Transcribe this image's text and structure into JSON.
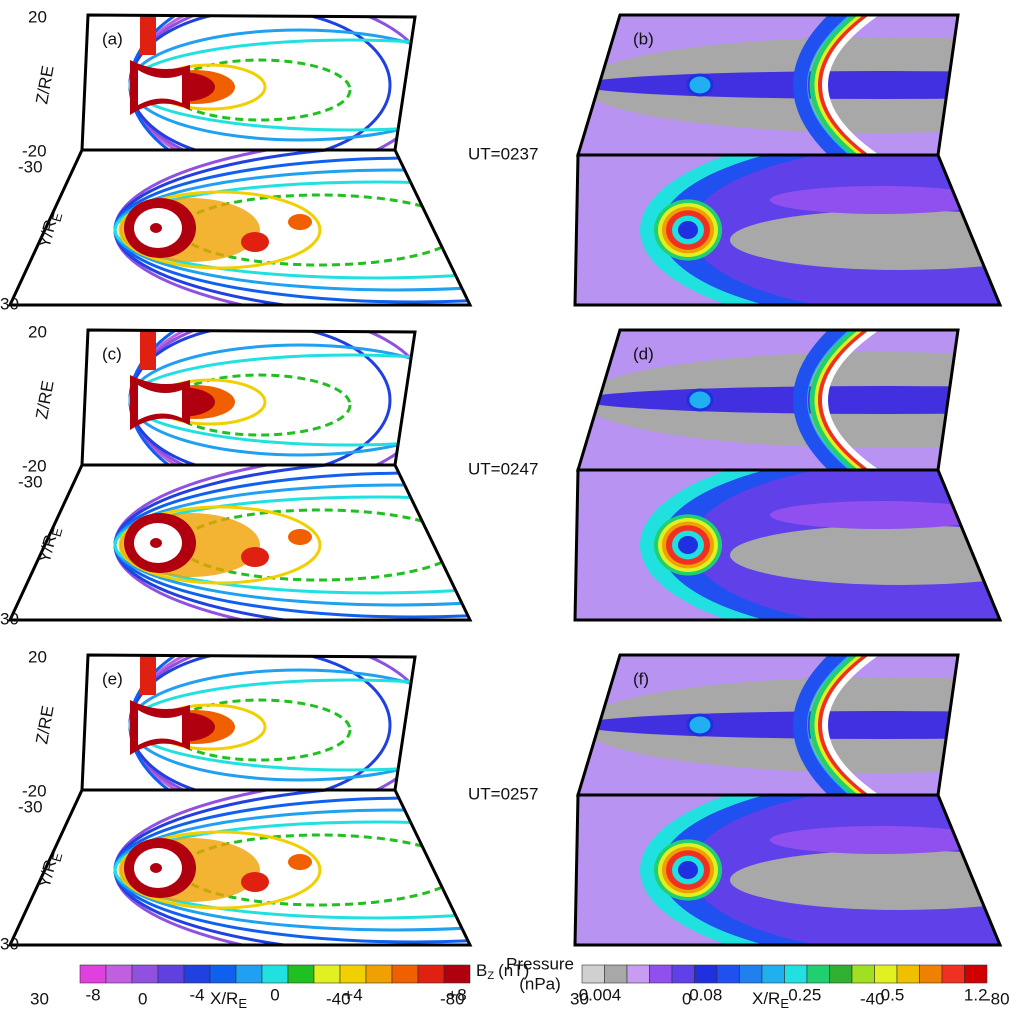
{
  "rows": [
    {
      "time": "UT=0237",
      "left_label": "(a)",
      "right_label": "(b)"
    },
    {
      "time": "UT=0247",
      "left_label": "(c)",
      "right_label": "(d)"
    },
    {
      "time": "UT=0257",
      "left_label": "(e)",
      "right_label": "(f)"
    }
  ],
  "left_axes": {
    "z_top": "20",
    "z_bottom": "-20",
    "z_title": "Z/RE",
    "y_top": "-30",
    "y_bottom": "30",
    "y_title": "Y/R",
    "y_title_sub": "E"
  },
  "x_axis": {
    "ticks": [
      "30",
      "0",
      "-40",
      "-80"
    ],
    "title": "X/R",
    "title_sub": "E"
  },
  "bz_colorbar": {
    "title": "B",
    "title_sub": "Z",
    "title_unit": "(nT)",
    "ticks": [
      "-8",
      "-4",
      "0",
      "+4",
      "+8"
    ],
    "colors": [
      "#e040e0",
      "#c060e0",
      "#9050e0",
      "#6040e0",
      "#2040e0",
      "#1060f0",
      "#20a0f0",
      "#20e0e0",
      "#20c020",
      "#e0f020",
      "#f0d000",
      "#f0a000",
      "#f06000",
      "#e02010",
      "#b00010"
    ]
  },
  "pressure_colorbar": {
    "title": "Pressure",
    "unit": "(nPa)",
    "ticks": [
      "0.004",
      "0.08",
      "0.25",
      "0.5",
      "1.2"
    ],
    "colors": [
      "#d0d0d0",
      "#a8a8a8",
      "#c89cf0",
      "#9050f0",
      "#6040e8",
      "#2030e0",
      "#2050f0",
      "#2080f0",
      "#20b0f0",
      "#20e0e0",
      "#20d070",
      "#30b030",
      "#a0e020",
      "#e0f020",
      "#f0c000",
      "#f08000",
      "#f03020",
      "#d00000"
    ]
  }
}
